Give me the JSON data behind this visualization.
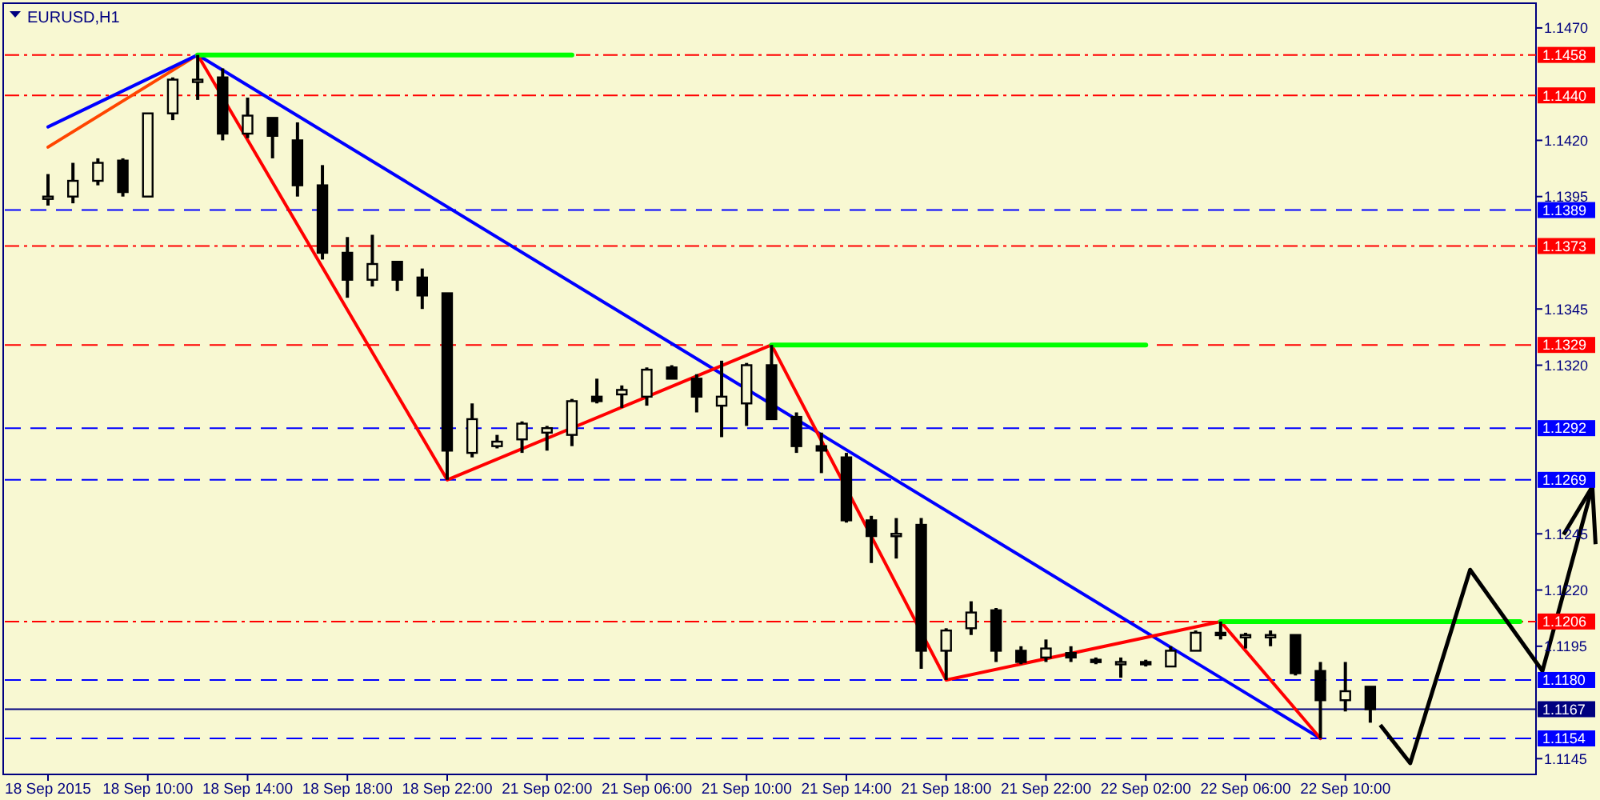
{
  "chart_data": {
    "type": "candlestick",
    "title": "EURUSD,H1",
    "categories": [
      "18 Sep 2015",
      null,
      null,
      null,
      "18 Sep 10:00",
      null,
      null,
      null,
      "18 Sep 14:00",
      null,
      null,
      null,
      "18 Sep 18:00",
      null,
      null,
      null,
      "18 Sep 22:00",
      null,
      null,
      null,
      "21 Sep 02:00",
      null,
      null,
      null,
      "21 Sep 06:00",
      null,
      null,
      null,
      "21 Sep 10:00",
      null,
      null,
      null,
      "21 Sep 14:00",
      null,
      null,
      null,
      "21 Sep 18:00",
      null,
      null,
      null,
      "21 Sep 22:00",
      null,
      null,
      null,
      "22 Sep 02:00",
      null,
      null,
      null,
      "22 Sep 06:00",
      null,
      null,
      null,
      "22 Sep 10:00",
      null,
      null,
      null,
      null,
      null,
      null,
      null
    ],
    "ohlc": [
      [
        1.1395,
        1.1405,
        1.1391,
        1.1395
      ],
      [
        1.1395,
        1.141,
        1.1392,
        1.1402
      ],
      [
        1.1402,
        1.1412,
        1.14,
        1.141
      ],
      [
        1.1411,
        1.1412,
        1.1395,
        1.1397
      ],
      [
        1.1395,
        1.1432,
        1.1395,
        1.1432
      ],
      [
        1.1432,
        1.1448,
        1.1429,
        1.1447
      ],
      [
        1.1447,
        1.1458,
        1.1438,
        1.1447
      ],
      [
        1.1448,
        1.1452,
        1.142,
        1.1423
      ],
      [
        1.1423,
        1.1439,
        1.1421,
        1.1431
      ],
      [
        1.143,
        1.143,
        1.1412,
        1.1422
      ],
      [
        1.142,
        1.1428,
        1.1395,
        1.14
      ],
      [
        1.14,
        1.1409,
        1.1367,
        1.137
      ],
      [
        1.137,
        1.1377,
        1.135,
        1.1358
      ],
      [
        1.1358,
        1.1378,
        1.1355,
        1.1365
      ],
      [
        1.1366,
        1.1366,
        1.1353,
        1.1358
      ],
      [
        1.1359,
        1.1363,
        1.1345,
        1.1351
      ],
      [
        1.1352,
        1.1352,
        1.1269,
        1.1282
      ],
      [
        1.1281,
        1.1303,
        1.1279,
        1.1296
      ],
      [
        1.1284,
        1.1289,
        1.1283,
        1.1286
      ],
      [
        1.1287,
        1.1295,
        1.1281,
        1.1294
      ],
      [
        1.129,
        1.1293,
        1.1282,
        1.1292
      ],
      [
        1.1289,
        1.1305,
        1.1284,
        1.1304
      ],
      [
        1.1306,
        1.1314,
        1.1303,
        1.1304
      ],
      [
        1.1307,
        1.1311,
        1.1301,
        1.1309
      ],
      [
        1.1306,
        1.1319,
        1.1302,
        1.1318
      ],
      [
        1.1319,
        1.132,
        1.1314,
        1.1314
      ],
      [
        1.1314,
        1.1316,
        1.1299,
        1.1306
      ],
      [
        1.1302,
        1.1322,
        1.1288,
        1.1306
      ],
      [
        1.1303,
        1.1321,
        1.1293,
        1.132
      ],
      [
        1.132,
        1.1329,
        1.1296,
        1.1296
      ],
      [
        1.1297,
        1.1299,
        1.1281,
        1.1284
      ],
      [
        1.1284,
        1.129,
        1.1272,
        1.1282
      ],
      [
        1.1279,
        1.1281,
        1.125,
        1.1251
      ],
      [
        1.1251,
        1.1253,
        1.1232,
        1.1244
      ],
      [
        1.1245,
        1.1252,
        1.1234,
        1.1245
      ],
      [
        1.1249,
        1.1252,
        1.1185,
        1.1193
      ],
      [
        1.1193,
        1.1203,
        1.118,
        1.1202
      ],
      [
        1.1203,
        1.1215,
        1.12,
        1.121
      ],
      [
        1.1211,
        1.1212,
        1.1188,
        1.1193
      ],
      [
        1.1193,
        1.1195,
        1.1187,
        1.1188
      ],
      [
        1.119,
        1.1198,
        1.1188,
        1.1194
      ],
      [
        1.1192,
        1.1195,
        1.1188,
        1.119
      ],
      [
        1.1189,
        1.119,
        1.1187,
        1.1188
      ],
      [
        1.1188,
        1.119,
        1.1181,
        1.1188
      ],
      [
        1.1188,
        1.1189,
        1.1186,
        1.1187
      ],
      [
        1.1186,
        1.1195,
        1.1186,
        1.1193
      ],
      [
        1.1193,
        1.1202,
        1.1193,
        1.1201
      ],
      [
        1.1201,
        1.1206,
        1.1198,
        1.12
      ],
      [
        1.12,
        1.1201,
        1.1194,
        1.12
      ],
      [
        1.12,
        1.1202,
        1.1195,
        1.12
      ],
      [
        1.12,
        1.12,
        1.1182,
        1.1183
      ],
      [
        1.1184,
        1.1188,
        1.1154,
        1.1171
      ],
      [
        1.1171,
        1.1188,
        1.1166,
        1.1175
      ],
      [
        1.1177,
        1.1177,
        1.1161,
        1.1167
      ],
      null,
      null,
      null,
      null,
      null,
      null
    ],
    "series": [
      {
        "type": "line",
        "color": "#ff4500",
        "values": [
          1.1417,
          null,
          null,
          null,
          null,
          null,
          1.1458,
          null,
          null,
          null,
          null,
          null,
          null,
          null,
          null,
          null,
          null,
          null,
          null,
          null,
          null,
          null,
          null,
          null,
          null,
          null,
          null,
          null,
          null,
          null,
          null,
          null,
          null,
          null,
          null,
          null,
          null,
          null,
          null,
          null,
          null,
          null,
          null,
          null,
          null,
          null,
          null,
          null,
          null,
          null,
          null,
          null,
          null,
          null,
          null,
          null,
          null,
          null,
          null,
          null
        ]
      },
      {
        "type": "line",
        "color": "#0000ff",
        "values": [
          1.1426,
          null,
          null,
          null,
          null,
          null,
          1.1458,
          null,
          null,
          null,
          null,
          null,
          null,
          null,
          null,
          null,
          null,
          null,
          null,
          null,
          null,
          null,
          null,
          null,
          null,
          null,
          null,
          null,
          null,
          null,
          null,
          null,
          null,
          null,
          null,
          null,
          null,
          null,
          null,
          null,
          null,
          null,
          null,
          null,
          null,
          null,
          null,
          null,
          null,
          null,
          null,
          1.1154,
          null,
          null,
          null,
          null,
          null,
          null,
          null,
          null
        ]
      },
      {
        "type": "line",
        "color": "#ff0000",
        "values": [
          null,
          null,
          null,
          null,
          null,
          null,
          1.1458,
          null,
          null,
          null,
          null,
          null,
          null,
          null,
          null,
          null,
          1.1269,
          null,
          null,
          null,
          null,
          null,
          null,
          null,
          null,
          null,
          null,
          null,
          null,
          1.1329,
          null,
          null,
          null,
          null,
          null,
          null,
          1.118,
          null,
          null,
          null,
          null,
          null,
          null,
          null,
          null,
          null,
          null,
          1.1206,
          null,
          null,
          null,
          1.1154,
          null,
          null,
          null,
          null,
          null,
          null,
          null,
          null
        ]
      },
      {
        "type": "line",
        "color": "#00ff00",
        "values": [
          null,
          null,
          null,
          null,
          null,
          null,
          1.1458,
          1.1458,
          1.1458,
          1.1458,
          1.1458,
          1.1458,
          1.1458,
          1.1458,
          1.1458,
          1.1458,
          1.1458,
          1.1458,
          1.1458,
          1.1458,
          1.1458,
          1.1458,
          null,
          null,
          null,
          null,
          null,
          null,
          null,
          null,
          null,
          null,
          null,
          null,
          null,
          null,
          null,
          null,
          null,
          null,
          null,
          null,
          null,
          null,
          null,
          null,
          null,
          null,
          null,
          null,
          null,
          null,
          null,
          null,
          null,
          null,
          null,
          null,
          null,
          null
        ]
      },
      {
        "type": "line",
        "color": "#00ff00",
        "values": [
          null,
          null,
          null,
          null,
          null,
          null,
          null,
          null,
          null,
          null,
          null,
          null,
          null,
          null,
          null,
          null,
          null,
          null,
          null,
          null,
          null,
          null,
          null,
          null,
          null,
          null,
          null,
          null,
          null,
          1.1329,
          1.1329,
          1.1329,
          1.1329,
          1.1329,
          1.1329,
          1.1329,
          1.1329,
          1.1329,
          1.1329,
          1.1329,
          1.1329,
          1.1329,
          1.1329,
          1.1329,
          1.1329,
          null,
          null,
          null,
          null,
          null,
          null,
          null,
          null,
          null,
          null,
          null,
          null,
          null,
          null,
          null
        ]
      },
      {
        "type": "line",
        "color": "#00ff00",
        "values": [
          null,
          null,
          null,
          null,
          null,
          null,
          null,
          null,
          null,
          null,
          null,
          null,
          null,
          null,
          null,
          null,
          null,
          null,
          null,
          null,
          null,
          null,
          null,
          null,
          null,
          null,
          null,
          null,
          null,
          null,
          null,
          null,
          null,
          null,
          null,
          null,
          null,
          null,
          null,
          null,
          null,
          null,
          null,
          null,
          null,
          null,
          null,
          1.1206,
          1.1206,
          1.1206,
          1.1206,
          1.1206,
          1.1206,
          1.1206,
          1.1206,
          1.1206,
          1.1206,
          1.1206,
          1.1206,
          1.1206
        ]
      }
    ],
    "ylim": [
      1.1138,
      1.1481
    ],
    "yticks": [
      {
        "value": 1.147,
        "label": "1.1470"
      },
      {
        "value": 1.142,
        "label": "1.1420"
      },
      1.1395,
      1.1345,
      {
        "value": 1.132,
        "label": "1.1320"
      },
      1.1245,
      {
        "value": 1.122,
        "label": "1.1220"
      },
      1.1195,
      1.1145
    ],
    "ref_lines": [
      {
        "axis": "y",
        "value": 1.1458,
        "label": "1.1458",
        "color": "#ff0000",
        "line_style": "dotted"
      },
      {
        "axis": "y",
        "value": 1.144,
        "label": "1.1440",
        "color": "#ff0000",
        "line_style": "dotted"
      },
      {
        "axis": "y",
        "value": 1.1389,
        "label": "1.1389",
        "color": "#0000ff",
        "line_style": "dashed"
      },
      {
        "axis": "y",
        "value": 1.1373,
        "label": "1.1373",
        "color": "#ff0000",
        "line_style": "dotted"
      },
      {
        "axis": "y",
        "value": 1.1329,
        "label": "1.1329",
        "color": "#ff0000",
        "line_style": "dashed"
      },
      {
        "axis": "y",
        "value": 1.1292,
        "label": "1.1292",
        "color": "#0000ff",
        "line_style": "dashed"
      },
      {
        "axis": "y",
        "value": 1.1269,
        "label": "1.1269",
        "color": "#0000ff",
        "line_style": "dashed"
      },
      {
        "axis": "y",
        "value": 1.1206,
        "label": "1.1206",
        "color": "#ff0000",
        "line_style": "dotted"
      },
      {
        "axis": "y",
        "value": 1.118,
        "label": "1.1180",
        "color": "#0000ff",
        "line_style": "dashed"
      },
      {
        "axis": "y",
        "value": 1.1167,
        "label": "1.1167",
        "color": "#000080",
        "line_style": "solid"
      },
      {
        "axis": "y",
        "value": 1.1154,
        "label": "1.1154",
        "color": "#0000ff",
        "line_style": "dashed"
      }
    ],
    "grid": false
  }
}
